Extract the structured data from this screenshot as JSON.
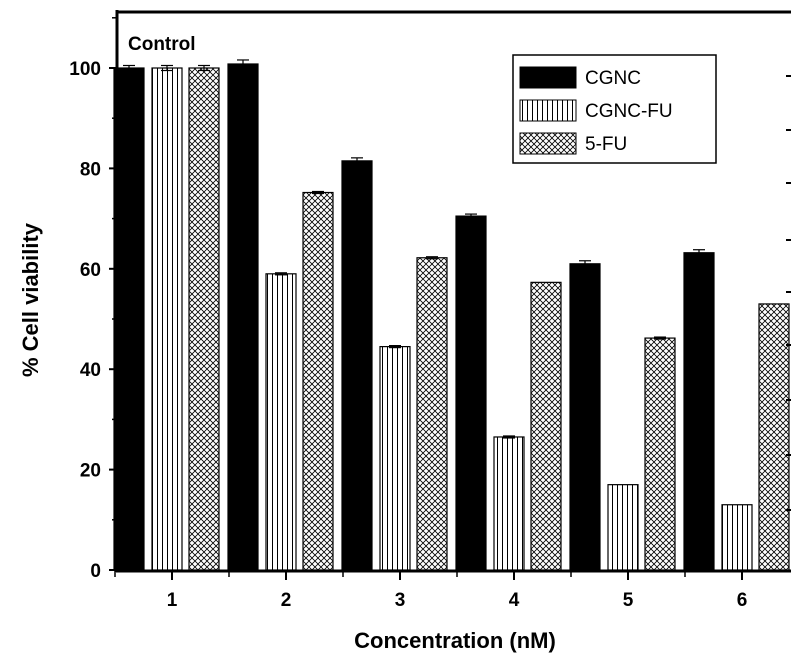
{
  "chart_data": {
    "type": "bar",
    "title": "",
    "xlabel": "Concentration (nM)",
    "ylabel": "% Cell viability",
    "ylim": [
      0,
      110
    ],
    "yticks": [
      "0",
      "20",
      "40",
      "60",
      "80",
      "100"
    ],
    "categories": [
      "1",
      "2",
      "3",
      "4",
      "5",
      "6"
    ],
    "series": [
      {
        "name": "CGNC",
        "values": [
          100,
          100.8,
          81.5,
          70.5,
          61,
          63.2
        ],
        "errors": [
          0.5,
          0.8,
          0.6,
          0.4,
          0.6,
          0.6
        ],
        "pattern": "solid"
      },
      {
        "name": "CGNC-FU",
        "values": [
          100,
          59,
          44.5,
          26.5,
          17,
          13
        ],
        "errors": [
          0.5,
          0.2,
          0.2,
          0.2,
          0,
          0
        ],
        "pattern": "vertical-lines"
      },
      {
        "name": "5-FU",
        "values": [
          100,
          75.2,
          62.2,
          57.3,
          46.2,
          53
        ],
        "errors": [
          0.5,
          0.2,
          0.2,
          0,
          0.2,
          0
        ],
        "pattern": "crosshatch"
      }
    ],
    "annotation": "Control",
    "legend_position": "top-right",
    "grid": false
  }
}
